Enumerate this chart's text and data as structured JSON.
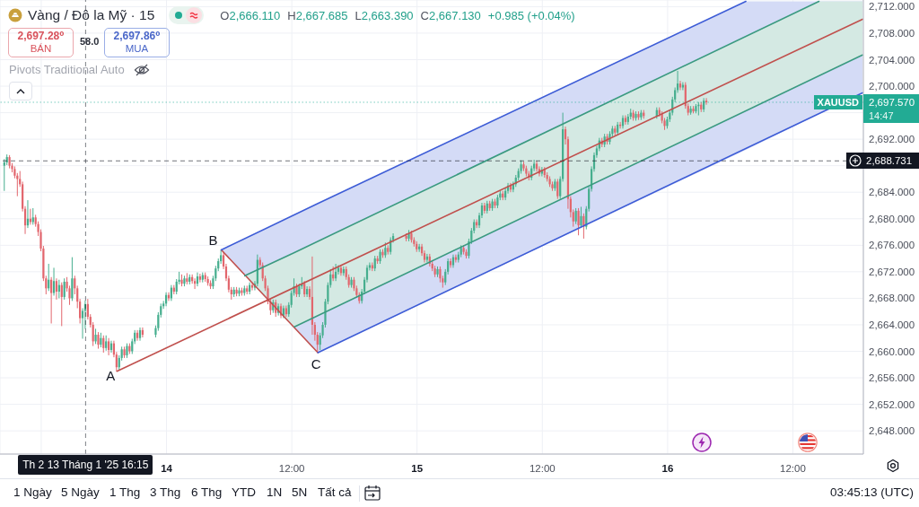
{
  "chart_data": {
    "type": "candlestick",
    "title": "Vàng / Đô la Mỹ · 15",
    "x": [
      "2025-01-13T08:30",
      "2025-01-13T08:45",
      "2025-01-13T09:00",
      "2025-01-13T09:15",
      "2025-01-13T09:30",
      "2025-01-13T09:45",
      "2025-01-13T10:00",
      "2025-01-13T10:15",
      "2025-01-13T10:30",
      "2025-01-13T10:45",
      "2025-01-13T11:00",
      "2025-01-13T11:15",
      "2025-01-13T11:30",
      "2025-01-13T11:45",
      "2025-01-13T12:00",
      "2025-01-13T12:15",
      "2025-01-13T12:30",
      "2025-01-13T12:45",
      "2025-01-13T13:00",
      "2025-01-13T13:15",
      "2025-01-13T13:30",
      "2025-01-13T13:45",
      "2025-01-13T14:00",
      "2025-01-13T14:15",
      "2025-01-13T14:30",
      "2025-01-13T14:45",
      "2025-01-13T15:00",
      "2025-01-13T15:15",
      "2025-01-13T15:30",
      "2025-01-13T15:45",
      "2025-01-13T16:00",
      "2025-01-13T16:15",
      "2025-01-13T16:30",
      "2025-01-13T16:45",
      "2025-01-13T17:00",
      "2025-01-13T17:15",
      "2025-01-13T17:30",
      "2025-01-13T17:45",
      "2025-01-13T18:00",
      "2025-01-13T18:15",
      "2025-01-13T18:30",
      "2025-01-13T18:45",
      "2025-01-13T19:00",
      "2025-01-13T19:15",
      "2025-01-13T19:30",
      "2025-01-13T19:45",
      "2025-01-13T20:00",
      "2025-01-13T20:15",
      "2025-01-13T20:30",
      "2025-01-13T20:45",
      "2025-01-13T21:00",
      "2025-01-13T21:15",
      "2025-01-13T21:30",
      "2025-01-13T21:45",
      "2025-01-13T23:00",
      "2025-01-13T23:15",
      "2025-01-13T23:30",
      "2025-01-13T23:45",
      "2025-01-14T00:00",
      "2025-01-14T00:15",
      "2025-01-14T00:30",
      "2025-01-14T00:45",
      "2025-01-14T01:00",
      "2025-01-14T01:15",
      "2025-01-14T01:30",
      "2025-01-14T01:45",
      "2025-01-14T02:00",
      "2025-01-14T02:15",
      "2025-01-14T02:30",
      "2025-01-14T02:45",
      "2025-01-14T03:00",
      "2025-01-14T03:15",
      "2025-01-14T03:30",
      "2025-01-14T03:45",
      "2025-01-14T04:00",
      "2025-01-14T04:15",
      "2025-01-14T04:30",
      "2025-01-14T04:45",
      "2025-01-14T05:00",
      "2025-01-14T05:15",
      "2025-01-14T05:30",
      "2025-01-14T05:45",
      "2025-01-14T06:00",
      "2025-01-14T06:15",
      "2025-01-14T06:30",
      "2025-01-14T06:45",
      "2025-01-14T07:00",
      "2025-01-14T07:15",
      "2025-01-14T07:30",
      "2025-01-14T07:45",
      "2025-01-14T08:00",
      "2025-01-14T08:15",
      "2025-01-14T08:30",
      "2025-01-14T08:45",
      "2025-01-14T09:00",
      "2025-01-14T09:15",
      "2025-01-14T09:30",
      "2025-01-14T09:45",
      "2025-01-14T10:00",
      "2025-01-14T10:15",
      "2025-01-14T10:30",
      "2025-01-14T10:45",
      "2025-01-14T11:00",
      "2025-01-14T11:15",
      "2025-01-14T11:30",
      "2025-01-14T11:45",
      "2025-01-14T12:00",
      "2025-01-14T12:15",
      "2025-01-14T12:30",
      "2025-01-14T12:45",
      "2025-01-14T13:00",
      "2025-01-14T13:15",
      "2025-01-14T13:30",
      "2025-01-14T13:45",
      "2025-01-14T14:00",
      "2025-01-14T14:15",
      "2025-01-14T14:30",
      "2025-01-14T14:45",
      "2025-01-14T15:00",
      "2025-01-14T15:15",
      "2025-01-14T15:30",
      "2025-01-14T15:45",
      "2025-01-14T16:00",
      "2025-01-14T16:15",
      "2025-01-14T16:30",
      "2025-01-14T16:45",
      "2025-01-14T17:00",
      "2025-01-14T17:15",
      "2025-01-14T17:30",
      "2025-01-14T17:45",
      "2025-01-14T18:00",
      "2025-01-14T18:15",
      "2025-01-14T18:30",
      "2025-01-14T18:45",
      "2025-01-14T19:00",
      "2025-01-14T19:15",
      "2025-01-14T19:30",
      "2025-01-14T19:45",
      "2025-01-14T20:00",
      "2025-01-14T20:15",
      "2025-01-14T20:30",
      "2025-01-14T20:45",
      "2025-01-14T21:00",
      "2025-01-14T21:15",
      "2025-01-14T21:30",
      "2025-01-14T21:45",
      "2025-01-14T23:00",
      "2025-01-14T23:15",
      "2025-01-14T23:30",
      "2025-01-14T23:45",
      "2025-01-15T00:00",
      "2025-01-15T00:15",
      "2025-01-15T00:30",
      "2025-01-15T00:45",
      "2025-01-15T01:00",
      "2025-01-15T01:15",
      "2025-01-15T01:30",
      "2025-01-15T01:45",
      "2025-01-15T02:00",
      "2025-01-15T02:15",
      "2025-01-15T02:30",
      "2025-01-15T02:45",
      "2025-01-15T03:00",
      "2025-01-15T03:15",
      "2025-01-15T03:30",
      "2025-01-15T03:45",
      "2025-01-15T04:00",
      "2025-01-15T04:15",
      "2025-01-15T04:30",
      "2025-01-15T04:45",
      "2025-01-15T05:00",
      "2025-01-15T05:15",
      "2025-01-15T05:30",
      "2025-01-15T05:45",
      "2025-01-15T06:00",
      "2025-01-15T06:15",
      "2025-01-15T06:30",
      "2025-01-15T06:45",
      "2025-01-15T07:00",
      "2025-01-15T07:15",
      "2025-01-15T07:30",
      "2025-01-15T07:45",
      "2025-01-15T08:00",
      "2025-01-15T08:15",
      "2025-01-15T08:30",
      "2025-01-15T08:45",
      "2025-01-15T09:00",
      "2025-01-15T09:15",
      "2025-01-15T09:30",
      "2025-01-15T09:45",
      "2025-01-15T10:00",
      "2025-01-15T10:15",
      "2025-01-15T10:30",
      "2025-01-15T10:45",
      "2025-01-15T11:00",
      "2025-01-15T11:15",
      "2025-01-15T11:30",
      "2025-01-15T11:45",
      "2025-01-15T12:00",
      "2025-01-15T12:15",
      "2025-01-15T12:30",
      "2025-01-15T12:45",
      "2025-01-15T13:00",
      "2025-01-15T13:15",
      "2025-01-15T13:30",
      "2025-01-15T13:45",
      "2025-01-15T14:00",
      "2025-01-15T14:15",
      "2025-01-15T14:30",
      "2025-01-15T14:45",
      "2025-01-15T15:00",
      "2025-01-15T15:15",
      "2025-01-15T15:30",
      "2025-01-15T15:45",
      "2025-01-15T16:00",
      "2025-01-15T16:15",
      "2025-01-15T16:30",
      "2025-01-15T16:45",
      "2025-01-15T17:00",
      "2025-01-15T17:15",
      "2025-01-15T17:30",
      "2025-01-15T17:45",
      "2025-01-15T18:00",
      "2025-01-15T18:15",
      "2025-01-15T18:30",
      "2025-01-15T18:45",
      "2025-01-15T19:00",
      "2025-01-15T19:15",
      "2025-01-15T19:30",
      "2025-01-15T19:45",
      "2025-01-15T20:00",
      "2025-01-15T20:15",
      "2025-01-15T20:30",
      "2025-01-15T20:45",
      "2025-01-15T21:00",
      "2025-01-15T21:15",
      "2025-01-15T21:30",
      "2025-01-15T21:45",
      "2025-01-15T23:00",
      "2025-01-15T23:15",
      "2025-01-15T23:30",
      "2025-01-15T23:45",
      "2025-01-16T00:00",
      "2025-01-16T00:15",
      "2025-01-16T00:30",
      "2025-01-16T00:45",
      "2025-01-16T01:00",
      "2025-01-16T01:15",
      "2025-01-16T01:30",
      "2025-01-16T01:45",
      "2025-01-16T02:00",
      "2025-01-16T02:15",
      "2025-01-16T02:30",
      "2025-01-16T02:45",
      "2025-01-16T03:00",
      "2025-01-16T03:15",
      "2025-01-16T03:30",
      "2025-01-16T03:45"
    ],
    "ohlc": [
      [
        2688.0,
        2689.0,
        2684.2,
        2688.5
      ],
      [
        2688.5,
        2689.7,
        2688.1,
        2689.3
      ],
      [
        2689.3,
        2689.6,
        2687.6,
        2688.0
      ],
      [
        2688.0,
        2688.4,
        2687.0,
        2687.5
      ],
      [
        2687.5,
        2687.9,
        2686.1,
        2686.5
      ],
      [
        2686.5,
        2686.9,
        2683.4,
        2686.0
      ],
      [
        2686.0,
        2687.2,
        2684.8,
        2685.2
      ],
      [
        2685.2,
        2685.6,
        2681.1,
        2681.5
      ],
      [
        2681.5,
        2681.9,
        2677.7,
        2679.0
      ],
      [
        2679.0,
        2682.8,
        2678.6,
        2680.0
      ],
      [
        2680.0,
        2681.5,
        2679.1,
        2679.5
      ],
      [
        2679.5,
        2681.6,
        2679.1,
        2680.2
      ],
      [
        2680.2,
        2680.6,
        2678.8,
        2679.2
      ],
      [
        2679.2,
        2679.6,
        2677.4,
        2678.0
      ],
      [
        2678.0,
        2678.4,
        2675.1,
        2675.5
      ],
      [
        2675.5,
        2675.9,
        2670.6,
        2671.0
      ],
      [
        2671.0,
        2671.4,
        2668.6,
        2669.5
      ],
      [
        2669.5,
        2673.2,
        2669.1,
        2670.8
      ],
      [
        2670.8,
        2671.2,
        2664.2,
        2668.8
      ],
      [
        2668.8,
        2672.6,
        2668.4,
        2670.6
      ],
      [
        2670.6,
        2671.0,
        2667.8,
        2669.0
      ],
      [
        2669.0,
        2670.8,
        2668.0,
        2670.0
      ],
      [
        2670.0,
        2670.4,
        2663.8,
        2668.2
      ],
      [
        2668.2,
        2671.0,
        2667.8,
        2670.5
      ],
      [
        2670.5,
        2671.2,
        2669.0,
        2669.5
      ],
      [
        2669.5,
        2669.9,
        2667.0,
        2668.0
      ],
      [
        2668.0,
        2674.2,
        2667.6,
        2671.0
      ],
      [
        2671.0,
        2671.4,
        2668.6,
        2669.5
      ],
      [
        2669.5,
        2669.9,
        2666.5,
        2667.5
      ],
      [
        2667.5,
        2667.9,
        2664.2,
        2665.0
      ],
      [
        2665.0,
        2666.5,
        2661.9,
        2666.1
      ],
      [
        2666.11,
        2667.685,
        2663.39,
        2667.13
      ],
      [
        2667.13,
        2667.9,
        2664.8,
        2665.2
      ],
      [
        2665.2,
        2665.6,
        2663.6,
        2664.0
      ],
      [
        2664.0,
        2664.4,
        2660.8,
        2661.5
      ],
      [
        2661.5,
        2663.4,
        2661.1,
        2662.5
      ],
      [
        2662.5,
        2662.9,
        2660.4,
        2661.0
      ],
      [
        2661.0,
        2662.8,
        2660.6,
        2662.0
      ],
      [
        2662.0,
        2662.4,
        2659.8,
        2660.5
      ],
      [
        2660.5,
        2662.4,
        2660.1,
        2661.5
      ],
      [
        2661.5,
        2662.0,
        2659.4,
        2660.2
      ],
      [
        2660.2,
        2661.6,
        2659.8,
        2661.2
      ],
      [
        2661.2,
        2661.6,
        2659.1,
        2659.5
      ],
      [
        2659.5,
        2659.9,
        2657.0,
        2657.6
      ],
      [
        2657.6,
        2659.4,
        2657.2,
        2659.0
      ],
      [
        2659.0,
        2660.7,
        2658.6,
        2660.3
      ],
      [
        2660.3,
        2660.7,
        2659.0,
        2659.4
      ],
      [
        2659.4,
        2661.2,
        2659.0,
        2660.8
      ],
      [
        2660.8,
        2661.2,
        2659.6,
        2660.0
      ],
      [
        2660.0,
        2661.9,
        2659.6,
        2661.5
      ],
      [
        2661.5,
        2663.2,
        2661.1,
        2662.8
      ],
      [
        2662.8,
        2663.2,
        2661.6,
        2662.0
      ],
      [
        2662.0,
        2663.6,
        2661.6,
        2663.2
      ],
      [
        2663.2,
        2663.6,
        2662.1,
        2662.5
      ],
      [
        2662.5,
        2663.9,
        2662.1,
        2663.5
      ],
      [
        2663.5,
        2665.9,
        2663.1,
        2665.5
      ],
      [
        2665.5,
        2667.2,
        2665.1,
        2666.8
      ],
      [
        2666.8,
        2667.6,
        2666.4,
        2667.2
      ],
      [
        2667.2,
        2668.9,
        2666.8,
        2668.5
      ],
      [
        2668.5,
        2668.9,
        2667.6,
        2668.0
      ],
      [
        2668.0,
        2670.0,
        2667.6,
        2669.6
      ],
      [
        2669.6,
        2670.0,
        2668.6,
        2669.0
      ],
      [
        2669.0,
        2670.9,
        2668.6,
        2670.5
      ],
      [
        2670.5,
        2672.0,
        2670.1,
        2670.8
      ],
      [
        2670.8,
        2671.6,
        2669.8,
        2670.2
      ],
      [
        2670.2,
        2671.4,
        2669.8,
        2671.0
      ],
      [
        2671.0,
        2671.8,
        2670.1,
        2670.5
      ],
      [
        2670.5,
        2671.6,
        2670.1,
        2671.2
      ],
      [
        2671.2,
        2671.6,
        2670.2,
        2670.6
      ],
      [
        2670.6,
        2671.0,
        2669.4,
        2670.2
      ],
      [
        2670.2,
        2671.9,
        2669.8,
        2671.3
      ],
      [
        2671.3,
        2671.7,
        2670.4,
        2670.8
      ],
      [
        2670.8,
        2671.9,
        2670.4,
        2671.5
      ],
      [
        2671.5,
        2671.9,
        2670.5,
        2670.9
      ],
      [
        2670.9,
        2671.3,
        2669.9,
        2670.3
      ],
      [
        2670.3,
        2670.7,
        2669.4,
        2669.8
      ],
      [
        2669.8,
        2671.4,
        2669.4,
        2671.0
      ],
      [
        2671.0,
        2672.9,
        2670.6,
        2672.5
      ],
      [
        2672.5,
        2674.0,
        2672.1,
        2673.6
      ],
      [
        2673.6,
        2675.3,
        2673.2,
        2674.5
      ],
      [
        2674.5,
        2674.9,
        2672.4,
        2672.8
      ],
      [
        2672.8,
        2673.2,
        2670.6,
        2671.0
      ],
      [
        2671.0,
        2671.4,
        2668.9,
        2669.3
      ],
      [
        2669.3,
        2669.7,
        2667.8,
        2668.6
      ],
      [
        2668.6,
        2669.7,
        2668.2,
        2669.3
      ],
      [
        2669.3,
        2669.7,
        2668.3,
        2668.7
      ],
      [
        2668.7,
        2669.6,
        2668.3,
        2669.2
      ],
      [
        2669.2,
        2669.6,
        2668.4,
        2668.8
      ],
      [
        2668.8,
        2669.9,
        2668.4,
        2669.5
      ],
      [
        2669.5,
        2669.9,
        2668.6,
        2669.0
      ],
      [
        2669.0,
        2670.4,
        2668.6,
        2670.0
      ],
      [
        2670.0,
        2670.4,
        2669.2,
        2669.6
      ],
      [
        2669.6,
        2670.6,
        2669.2,
        2670.2
      ],
      [
        2670.2,
        2674.6,
        2669.8,
        2673.8
      ],
      [
        2673.8,
        2674.2,
        2672.6,
        2673.0
      ],
      [
        2673.0,
        2673.4,
        2670.6,
        2671.0
      ],
      [
        2671.0,
        2671.4,
        2669.1,
        2669.5
      ],
      [
        2669.5,
        2669.9,
        2667.1,
        2667.5
      ],
      [
        2667.5,
        2667.9,
        2665.5,
        2666.2
      ],
      [
        2666.2,
        2667.8,
        2665.8,
        2667.4
      ],
      [
        2667.4,
        2667.8,
        2665.2,
        2665.8
      ],
      [
        2665.8,
        2667.2,
        2665.4,
        2666.8
      ],
      [
        2666.8,
        2667.2,
        2665.0,
        2665.4
      ],
      [
        2665.4,
        2666.9,
        2665.0,
        2666.5
      ],
      [
        2666.5,
        2666.9,
        2665.2,
        2665.6
      ],
      [
        2665.6,
        2667.4,
        2665.2,
        2667.0
      ],
      [
        2667.0,
        2669.2,
        2666.6,
        2668.8
      ],
      [
        2668.8,
        2671.0,
        2668.4,
        2669.8
      ],
      [
        2669.8,
        2670.2,
        2668.2,
        2668.6
      ],
      [
        2668.6,
        2670.2,
        2668.2,
        2669.8
      ],
      [
        2669.8,
        2671.2,
        2669.4,
        2670.2
      ],
      [
        2670.2,
        2670.6,
        2668.2,
        2668.6
      ],
      [
        2668.6,
        2669.8,
        2668.2,
        2669.4
      ],
      [
        2669.4,
        2669.8,
        2667.8,
        2668.2
      ],
      [
        2668.2,
        2674.3,
        2662.5,
        2664.0
      ],
      [
        2664.0,
        2664.4,
        2661.6,
        2662.5
      ],
      [
        2662.5,
        2662.9,
        2659.8,
        2661.0
      ],
      [
        2661.0,
        2662.8,
        2660.2,
        2662.4
      ],
      [
        2662.4,
        2664.4,
        2662.0,
        2664.0
      ],
      [
        2664.0,
        2667.9,
        2663.6,
        2667.5
      ],
      [
        2667.5,
        2670.4,
        2667.1,
        2670.0
      ],
      [
        2670.0,
        2672.4,
        2669.6,
        2671.6
      ],
      [
        2671.6,
        2672.8,
        2670.6,
        2671.0
      ],
      [
        2671.0,
        2673.2,
        2670.6,
        2672.0
      ],
      [
        2672.0,
        2673.0,
        2671.6,
        2672.6
      ],
      [
        2672.6,
        2673.0,
        2671.4,
        2671.8
      ],
      [
        2671.8,
        2672.8,
        2671.4,
        2672.4
      ],
      [
        2672.4,
        2672.8,
        2670.8,
        2671.2
      ],
      [
        2671.2,
        2671.6,
        2669.6,
        2670.0
      ],
      [
        2670.0,
        2671.2,
        2669.6,
        2670.8
      ],
      [
        2670.8,
        2671.2,
        2669.1,
        2669.5
      ],
      [
        2669.5,
        2669.9,
        2668.1,
        2668.5
      ],
      [
        2668.5,
        2668.9,
        2667.2,
        2667.6
      ],
      [
        2667.6,
        2669.4,
        2667.2,
        2669.0
      ],
      [
        2669.0,
        2671.2,
        2668.6,
        2670.8
      ],
      [
        2670.8,
        2673.0,
        2670.4,
        2672.6
      ],
      [
        2672.6,
        2673.4,
        2672.2,
        2673.0
      ],
      [
        2673.0,
        2673.4,
        2672.1,
        2672.5
      ],
      [
        2672.5,
        2674.4,
        2672.1,
        2674.0
      ],
      [
        2674.0,
        2674.4,
        2673.2,
        2673.6
      ],
      [
        2673.6,
        2675.4,
        2673.2,
        2675.0
      ],
      [
        2675.0,
        2675.4,
        2674.1,
        2674.5
      ],
      [
        2674.5,
        2676.4,
        2674.1,
        2675.6
      ],
      [
        2675.6,
        2676.0,
        2674.6,
        2675.0
      ],
      [
        2675.0,
        2677.2,
        2674.6,
        2676.8
      ],
      [
        2676.8,
        2677.8,
        2676.4,
        2677.4
      ],
      [
        2677.4,
        2677.8,
        2676.6,
        2677.0
      ],
      [
        2677.0,
        2678.3,
        2676.6,
        2677.8
      ],
      [
        2677.8,
        2678.2,
        2676.4,
        2676.8
      ],
      [
        2676.8,
        2677.2,
        2675.8,
        2676.2
      ],
      [
        2676.2,
        2676.6,
        2675.0,
        2675.4
      ],
      [
        2675.4,
        2676.2,
        2675.0,
        2675.8
      ],
      [
        2675.8,
        2676.2,
        2674.4,
        2674.8
      ],
      [
        2674.8,
        2675.2,
        2673.4,
        2673.8
      ],
      [
        2673.8,
        2674.7,
        2673.4,
        2674.3
      ],
      [
        2674.3,
        2674.7,
        2672.8,
        2673.2
      ],
      [
        2673.2,
        2673.6,
        2672.1,
        2672.5
      ],
      [
        2672.5,
        2672.9,
        2671.2,
        2671.6
      ],
      [
        2671.6,
        2672.8,
        2671.2,
        2672.4
      ],
      [
        2672.4,
        2672.8,
        2670.4,
        2671.0
      ],
      [
        2671.0,
        2671.4,
        2669.6,
        2670.4
      ],
      [
        2670.4,
        2672.4,
        2670.0,
        2672.0
      ],
      [
        2672.0,
        2674.0,
        2671.6,
        2673.6
      ],
      [
        2673.6,
        2674.0,
        2672.6,
        2673.0
      ],
      [
        2673.0,
        2674.6,
        2672.6,
        2674.2
      ],
      [
        2674.2,
        2674.6,
        2673.4,
        2673.8
      ],
      [
        2673.8,
        2675.0,
        2673.4,
        2674.6
      ],
      [
        2674.6,
        2676.0,
        2674.2,
        2675.6
      ],
      [
        2675.6,
        2676.0,
        2674.6,
        2675.0
      ],
      [
        2675.0,
        2675.4,
        2674.0,
        2674.4
      ],
      [
        2674.4,
        2677.0,
        2674.0,
        2676.6
      ],
      [
        2676.6,
        2678.6,
        2676.2,
        2678.2
      ],
      [
        2678.2,
        2679.9,
        2677.8,
        2679.5
      ],
      [
        2679.5,
        2679.9,
        2678.6,
        2679.0
      ],
      [
        2679.0,
        2680.9,
        2678.6,
        2680.5
      ],
      [
        2680.5,
        2682.4,
        2680.1,
        2682.0
      ],
      [
        2682.0,
        2682.4,
        2680.8,
        2681.2
      ],
      [
        2681.2,
        2682.7,
        2680.8,
        2682.3
      ],
      [
        2682.3,
        2682.7,
        2681.2,
        2681.6
      ],
      [
        2681.6,
        2683.0,
        2681.2,
        2682.6
      ],
      [
        2682.6,
        2683.0,
        2681.6,
        2682.0
      ],
      [
        2682.0,
        2683.6,
        2681.6,
        2683.2
      ],
      [
        2683.2,
        2684.2,
        2682.8,
        2683.8
      ],
      [
        2683.8,
        2684.2,
        2682.8,
        2683.2
      ],
      [
        2683.2,
        2684.6,
        2682.8,
        2684.2
      ],
      [
        2684.2,
        2685.4,
        2683.8,
        2685.0
      ],
      [
        2685.0,
        2685.4,
        2684.0,
        2684.4
      ],
      [
        2684.4,
        2685.6,
        2684.0,
        2685.2
      ],
      [
        2685.2,
        2686.6,
        2684.8,
        2686.2
      ],
      [
        2686.2,
        2687.6,
        2685.8,
        2687.2
      ],
      [
        2687.2,
        2688.8,
        2686.8,
        2688.2
      ],
      [
        2688.2,
        2688.6,
        2687.2,
        2687.6
      ],
      [
        2687.6,
        2688.0,
        2686.4,
        2686.8
      ],
      [
        2686.8,
        2687.2,
        2685.8,
        2686.2
      ],
      [
        2686.2,
        2688.0,
        2685.8,
        2687.6
      ],
      [
        2687.6,
        2688.9,
        2687.2,
        2688.3
      ],
      [
        2688.3,
        2688.7,
        2687.1,
        2687.5
      ],
      [
        2687.5,
        2687.9,
        2686.4,
        2686.8
      ],
      [
        2686.8,
        2687.8,
        2686.4,
        2687.4
      ],
      [
        2687.4,
        2687.8,
        2686.2,
        2686.6
      ],
      [
        2686.6,
        2687.0,
        2685.6,
        2686.0
      ],
      [
        2686.0,
        2686.4,
        2684.8,
        2685.2
      ],
      [
        2685.2,
        2685.6,
        2684.2,
        2684.6
      ],
      [
        2684.6,
        2686.0,
        2684.2,
        2685.6
      ],
      [
        2685.6,
        2686.0,
        2683.0,
        2683.4
      ],
      [
        2683.4,
        2686.4,
        2683.0,
        2686.0
      ],
      [
        2686.0,
        2696.0,
        2685.6,
        2693.5
      ],
      [
        2693.5,
        2693.9,
        2691.2,
        2692.0
      ],
      [
        2692.0,
        2692.4,
        2681.5,
        2683.0
      ],
      [
        2683.0,
        2683.4,
        2680.2,
        2681.0
      ],
      [
        2681.0,
        2681.4,
        2678.8,
        2679.6
      ],
      [
        2679.6,
        2681.6,
        2679.2,
        2681.2
      ],
      [
        2681.2,
        2681.6,
        2677.5,
        2679.0
      ],
      [
        2679.0,
        2681.8,
        2678.6,
        2680.4
      ],
      [
        2680.4,
        2680.8,
        2677.0,
        2678.8
      ],
      [
        2678.8,
        2681.9,
        2678.4,
        2681.5
      ],
      [
        2681.5,
        2684.9,
        2681.1,
        2684.5
      ],
      [
        2684.5,
        2687.9,
        2684.1,
        2687.5
      ],
      [
        2687.5,
        2690.0,
        2687.1,
        2689.6
      ],
      [
        2689.6,
        2691.0,
        2689.2,
        2690.6
      ],
      [
        2690.6,
        2692.2,
        2690.2,
        2691.8
      ],
      [
        2691.8,
        2692.2,
        2690.8,
        2691.2
      ],
      [
        2691.2,
        2692.8,
        2690.8,
        2692.4
      ],
      [
        2692.4,
        2692.8,
        2691.2,
        2691.6
      ],
      [
        2691.6,
        2693.2,
        2691.2,
        2692.8
      ],
      [
        2692.8,
        2694.0,
        2692.4,
        2693.6
      ],
      [
        2693.6,
        2694.0,
        2692.6,
        2693.0
      ],
      [
        2693.0,
        2694.6,
        2692.6,
        2694.2
      ],
      [
        2694.2,
        2694.6,
        2693.6,
        2694.0
      ],
      [
        2694.0,
        2695.6,
        2693.6,
        2695.2
      ],
      [
        2695.2,
        2695.6,
        2694.2,
        2694.6
      ],
      [
        2694.6,
        2695.8,
        2694.2,
        2695.4
      ],
      [
        2695.4,
        2696.6,
        2695.0,
        2696.0
      ],
      [
        2696.0,
        2696.4,
        2694.8,
        2695.2
      ],
      [
        2695.2,
        2696.2,
        2694.8,
        2695.8
      ],
      [
        2695.8,
        2696.2,
        2694.9,
        2695.3
      ],
      [
        2695.3,
        2696.4,
        2694.9,
        2696.0
      ],
      [
        2696.0,
        2696.4,
        2695.1,
        2695.5
      ],
      [
        2695.5,
        2696.8,
        2695.1,
        2696.4
      ],
      [
        2696.4,
        2696.8,
        2695.4,
        2695.8
      ],
      [
        2695.8,
        2696.2,
        2694.4,
        2694.8
      ],
      [
        2694.8,
        2695.2,
        2693.4,
        2694.0
      ],
      [
        2694.0,
        2695.4,
        2693.6,
        2695.0
      ],
      [
        2695.0,
        2696.4,
        2694.6,
        2696.0
      ],
      [
        2696.0,
        2698.4,
        2695.6,
        2698.0
      ],
      [
        2698.0,
        2699.8,
        2697.6,
        2699.4
      ],
      [
        2699.4,
        2702.3,
        2699.0,
        2700.4
      ],
      [
        2700.4,
        2700.8,
        2699.4,
        2699.8
      ],
      [
        2699.8,
        2700.6,
        2699.4,
        2700.2
      ],
      [
        2700.2,
        2700.6,
        2696.6,
        2697.0
      ],
      [
        2697.0,
        2697.4,
        2695.6,
        2696.0
      ],
      [
        2696.0,
        2697.0,
        2695.7,
        2696.6
      ],
      [
        2696.6,
        2697.0,
        2695.9,
        2696.2
      ],
      [
        2696.2,
        2697.3,
        2695.9,
        2697.0
      ],
      [
        2697.0,
        2697.6,
        2695.6,
        2697.2
      ],
      [
        2697.2,
        2697.6,
        2696.1,
        2696.5
      ],
      [
        2696.5,
        2698.2,
        2696.1,
        2697.8
      ],
      [
        2697.8,
        2698.2,
        2697.2,
        2697.57
      ]
    ],
    "colors": [
      "#46ae8e",
      "#46ae8e",
      "#e2666d",
      "#e2666d",
      "#e2666d",
      "#e2666d",
      "#e2666d",
      "#e2666d",
      "#e2666d",
      "#46ae8e",
      "#e2666d",
      "#46ae8e",
      "#e2666d",
      "#e2666d",
      "#e2666d",
      "#e2666d",
      "#e2666d",
      "#46ae8e",
      "#e2666d",
      "#46ae8e",
      "#e2666d",
      "#46ae8e",
      "#e2666d",
      "#46ae8e",
      "#e2666d",
      "#e2666d",
      "#46ae8e",
      "#e2666d",
      "#e2666d",
      "#e2666d",
      "#46ae8e",
      "#46ae8e",
      "#e2666d",
      "#e2666d",
      "#e2666d",
      "#46ae8e",
      "#e2666d",
      "#46ae8e",
      "#e2666d",
      "#46ae8e",
      "#e2666d",
      "#46ae8e",
      "#e2666d",
      "#e2666d",
      "#46ae8e",
      "#46ae8e",
      "#e2666d",
      "#46ae8e",
      "#e2666d",
      "#46ae8e",
      "#46ae8e",
      "#e2666d",
      "#46ae8e",
      "#e2666d",
      "#46ae8e",
      "#46ae8e",
      "#46ae8e",
      "#46ae8e",
      "#46ae8e",
      "#e2666d",
      "#46ae8e",
      "#e2666d",
      "#46ae8e",
      "#46ae8e",
      "#e2666d",
      "#46ae8e",
      "#e2666d",
      "#46ae8e",
      "#e2666d",
      "#e2666d",
      "#46ae8e",
      "#e2666d",
      "#46ae8e",
      "#e2666d",
      "#e2666d",
      "#e2666d",
      "#46ae8e",
      "#46ae8e",
      "#46ae8e",
      "#46ae8e",
      "#e2666d",
      "#e2666d",
      "#e2666d",
      "#e2666d",
      "#46ae8e",
      "#e2666d",
      "#46ae8e",
      "#e2666d",
      "#46ae8e",
      "#e2666d",
      "#46ae8e",
      "#e2666d",
      "#46ae8e",
      "#46ae8e",
      "#e2666d",
      "#e2666d",
      "#e2666d",
      "#e2666d",
      "#e2666d",
      "#46ae8e",
      "#e2666d",
      "#46ae8e",
      "#e2666d",
      "#46ae8e",
      "#e2666d",
      "#46ae8e",
      "#46ae8e",
      "#46ae8e",
      "#e2666d",
      "#46ae8e",
      "#46ae8e",
      "#e2666d",
      "#46ae8e",
      "#e2666d",
      "#e2666d",
      "#e2666d",
      "#e2666d",
      "#46ae8e",
      "#46ae8e",
      "#46ae8e",
      "#46ae8e",
      "#46ae8e",
      "#e2666d",
      "#46ae8e",
      "#46ae8e",
      "#e2666d",
      "#46ae8e",
      "#e2666d",
      "#e2666d",
      "#46ae8e",
      "#e2666d",
      "#e2666d",
      "#e2666d",
      "#46ae8e",
      "#46ae8e",
      "#46ae8e",
      "#46ae8e",
      "#e2666d",
      "#46ae8e",
      "#e2666d",
      "#46ae8e",
      "#e2666d",
      "#46ae8e",
      "#e2666d",
      "#46ae8e",
      "#46ae8e",
      "#e2666d",
      "#46ae8e",
      "#e2666d",
      "#e2666d",
      "#e2666d",
      "#46ae8e",
      "#e2666d",
      "#e2666d",
      "#46ae8e",
      "#e2666d",
      "#e2666d",
      "#e2666d",
      "#46ae8e",
      "#e2666d",
      "#e2666d",
      "#46ae8e",
      "#46ae8e",
      "#e2666d",
      "#46ae8e",
      "#e2666d",
      "#46ae8e",
      "#46ae8e",
      "#e2666d",
      "#e2666d",
      "#46ae8e",
      "#46ae8e",
      "#46ae8e",
      "#e2666d",
      "#46ae8e",
      "#46ae8e",
      "#e2666d",
      "#46ae8e",
      "#e2666d",
      "#46ae8e",
      "#e2666d",
      "#46ae8e",
      "#46ae8e",
      "#e2666d",
      "#46ae8e",
      "#46ae8e",
      "#e2666d",
      "#46ae8e",
      "#46ae8e",
      "#46ae8e",
      "#46ae8e",
      "#e2666d",
      "#e2666d",
      "#e2666d",
      "#46ae8e",
      "#46ae8e",
      "#e2666d",
      "#e2666d",
      "#46ae8e",
      "#e2666d",
      "#e2666d",
      "#e2666d",
      "#e2666d",
      "#46ae8e",
      "#e2666d",
      "#46ae8e",
      "#46ae8e",
      "#e2666d",
      "#e2666d",
      "#e2666d",
      "#e2666d",
      "#46ae8e",
      "#e2666d",
      "#46ae8e",
      "#e2666d",
      "#46ae8e",
      "#46ae8e",
      "#46ae8e",
      "#46ae8e",
      "#46ae8e",
      "#46ae8e",
      "#e2666d",
      "#46ae8e",
      "#e2666d",
      "#46ae8e",
      "#46ae8e",
      "#e2666d",
      "#46ae8e",
      "#e2666d",
      "#46ae8e",
      "#e2666d",
      "#46ae8e",
      "#46ae8e",
      "#e2666d",
      "#46ae8e",
      "#e2666d",
      "#46ae8e",
      "#e2666d",
      "#46ae8e",
      "#e2666d",
      "#e2666d",
      "#e2666d",
      "#46ae8e",
      "#46ae8e",
      "#46ae8e",
      "#46ae8e",
      "#46ae8e",
      "#e2666d",
      "#46ae8e",
      "#e2666d",
      "#e2666d",
      "#46ae8e",
      "#e2666d",
      "#46ae8e",
      "#46ae8e",
      "#e2666d",
      "#46ae8e",
      "#e2666d"
    ],
    "xlim": [
      "2025-01-13T08:03",
      "2025-01-16T18:45"
    ],
    "xticks": [
      {
        "value": "2025-01-13T12:00",
        "label": null
      },
      {
        "value": "2025-01-14T00:00",
        "label": "14"
      },
      {
        "value": "2025-01-14T12:00",
        "label": "12:00"
      },
      {
        "value": "2025-01-15T00:00",
        "label": "15"
      },
      {
        "value": "2025-01-15T12:00",
        "label": "12:00"
      },
      {
        "value": "2025-01-16T00:00",
        "label": "16"
      },
      {
        "value": "2025-01-16T12:00",
        "label": "12:00"
      }
    ],
    "ylim": [
      2644.5,
      2713.0
    ],
    "yticks": [
      {
        "value": 2648,
        "label": "2,648.000"
      },
      {
        "value": 2652,
        "label": "2,652.000"
      },
      {
        "value": 2656,
        "label": "2,656.000"
      },
      {
        "value": 2660,
        "label": "2,660.000"
      },
      {
        "value": 2664,
        "label": "2,664.000"
      },
      {
        "value": 2668,
        "label": "2,668.000"
      },
      {
        "value": 2672,
        "label": "2,672.000"
      },
      {
        "value": 2676,
        "label": "2,676.000"
      },
      {
        "value": 2680,
        "label": "2,680.000"
      },
      {
        "value": 2684,
        "label": "2,684.000"
      },
      {
        "value": 2688,
        "label": null
      },
      {
        "value": 2692,
        "label": "2,692.000"
      },
      {
        "value": 2696,
        "label": null
      },
      {
        "value": 2700,
        "label": "2,700.000"
      },
      {
        "value": 2704,
        "label": "2,704.000"
      },
      {
        "value": 2708,
        "label": "2,708.000"
      },
      {
        "value": 2712,
        "label": "2,712.000"
      }
    ],
    "grid": true,
    "series": [
      {
        "type": "line",
        "color": "#c0504d",
        "x": [
          "2025-01-14T05:15",
          "2025-01-14T14:30"
        ],
        "values": [
          2675.3,
          2659.8
        ]
      },
      {
        "type": "line",
        "color": "#c0504d",
        "x": [
          "2025-01-13T19:15",
          "2025-01-16T18:40"
        ],
        "values": [
          2657.0,
          2710.1
        ]
      },
      {
        "type": "line",
        "color": "#3d5cd6",
        "x": [
          "2025-01-14T05:15",
          "2025-01-14T14:30",
          "2025-01-16T07:30",
          "2025-01-16T18:40"
        ],
        "values": [
          2675.3,
          2682.3,
          2712.8,
          null
        ],
        "lower": [
          2675.3,
          2659.8,
          2690.4,
          2699.0
        ],
        "upper": [
          2675.3,
          2682.3,
          2712.8,
          2712.8
        ]
      },
      {
        "type": "line",
        "color": "#3d5cd6",
        "x": [
          "2025-01-14T14:30",
          "2025-01-16T18:40"
        ],
        "values": [
          2659.8,
          2699.0
        ]
      },
      {
        "type": "line",
        "color": "#3a9a80",
        "x": [
          "2025-01-14T07:30",
          "2025-01-14T12:15",
          "2025-01-16T14:30",
          "2025-01-16T18:40"
        ],
        "values": [
          2671.4,
          2674.9,
          2712.8,
          null
        ],
        "lower": [
          2671.4,
          2663.7,
          2701.6,
          2704.7
        ],
        "upper": [
          2671.4,
          2674.9,
          2712.8,
          2712.8
        ]
      },
      {
        "type": "line",
        "color": "#3a9a80",
        "x": [
          "2025-01-14T12:15",
          "2025-01-16T18:40"
        ],
        "values": [
          2663.7,
          2704.7
        ]
      }
    ],
    "ref_lines": [
      {
        "axis": "x",
        "value": "2025-01-13T16:15",
        "label": "Th 2 13 Tháng 1 '25 16:15",
        "color": "#131722",
        "line_style": "dashed"
      },
      {
        "axis": "y",
        "value": 2688.731,
        "label": "2,688.731",
        "color": "#131722",
        "line_style": "dashed"
      },
      {
        "axis": "y",
        "value": 2697.57,
        "label": "2,697.570",
        "color": "#22ab94",
        "line_style": "dotted"
      }
    ],
    "annotations": [
      "O2,666.110",
      "H2,667.685",
      "L2,663.390",
      "C2,667.130",
      "+0.985 (+0.04%)",
      "2,697.28⁰",
      "BÁN",
      "58.0",
      "2,697.86⁰",
      "MUA",
      "Pivots Traditional Auto",
      {
        "text": "XAUUSD",
        "y": 2697.57
      },
      "14:47",
      "1 Ngày",
      "5 Ngày",
      "1 Thg",
      "3 Thg",
      "6 Thg",
      "YTD",
      "1N",
      "5N",
      "Tất cả",
      "03:45:13 (UTC)",
      {
        "text": "A",
        "x": "2025-01-13T19:15",
        "y": 2657.0
      },
      {
        "text": "B",
        "x": "2025-01-14T05:15",
        "y": 2675.3
      },
      {
        "text": "C",
        "x": "2025-01-14T14:30",
        "y": 2659.8
      }
    ]
  }
}
